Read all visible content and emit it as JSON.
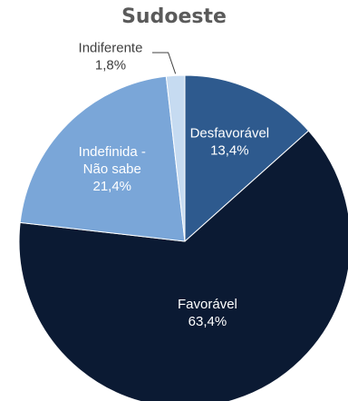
{
  "chart_data": {
    "type": "pie",
    "title": "Sudoeste",
    "slices": [
      {
        "name": "Desfavorável",
        "value": 13.4,
        "value_label": "13,4%",
        "color": "#2e5a8e",
        "label_color": "#ffffff"
      },
      {
        "name": "Favorável",
        "value": 63.4,
        "value_label": "63,4%",
        "color": "#0b1a33",
        "label_color": "#ffffff"
      },
      {
        "name": "Indefinida - Não sabe",
        "name_lines": [
          "Indefinida -",
          "Não sabe"
        ],
        "value": 21.4,
        "value_label": "21,4%",
        "color": "#7aa6d8",
        "label_color": "#ffffff"
      },
      {
        "name": "Indiferente",
        "value": 1.8,
        "value_label": "1,8%",
        "color": "#c6dbf1",
        "label_color": "#404040"
      }
    ],
    "start_angle": "12 o'clock",
    "direction": "clockwise",
    "legend": "none"
  }
}
